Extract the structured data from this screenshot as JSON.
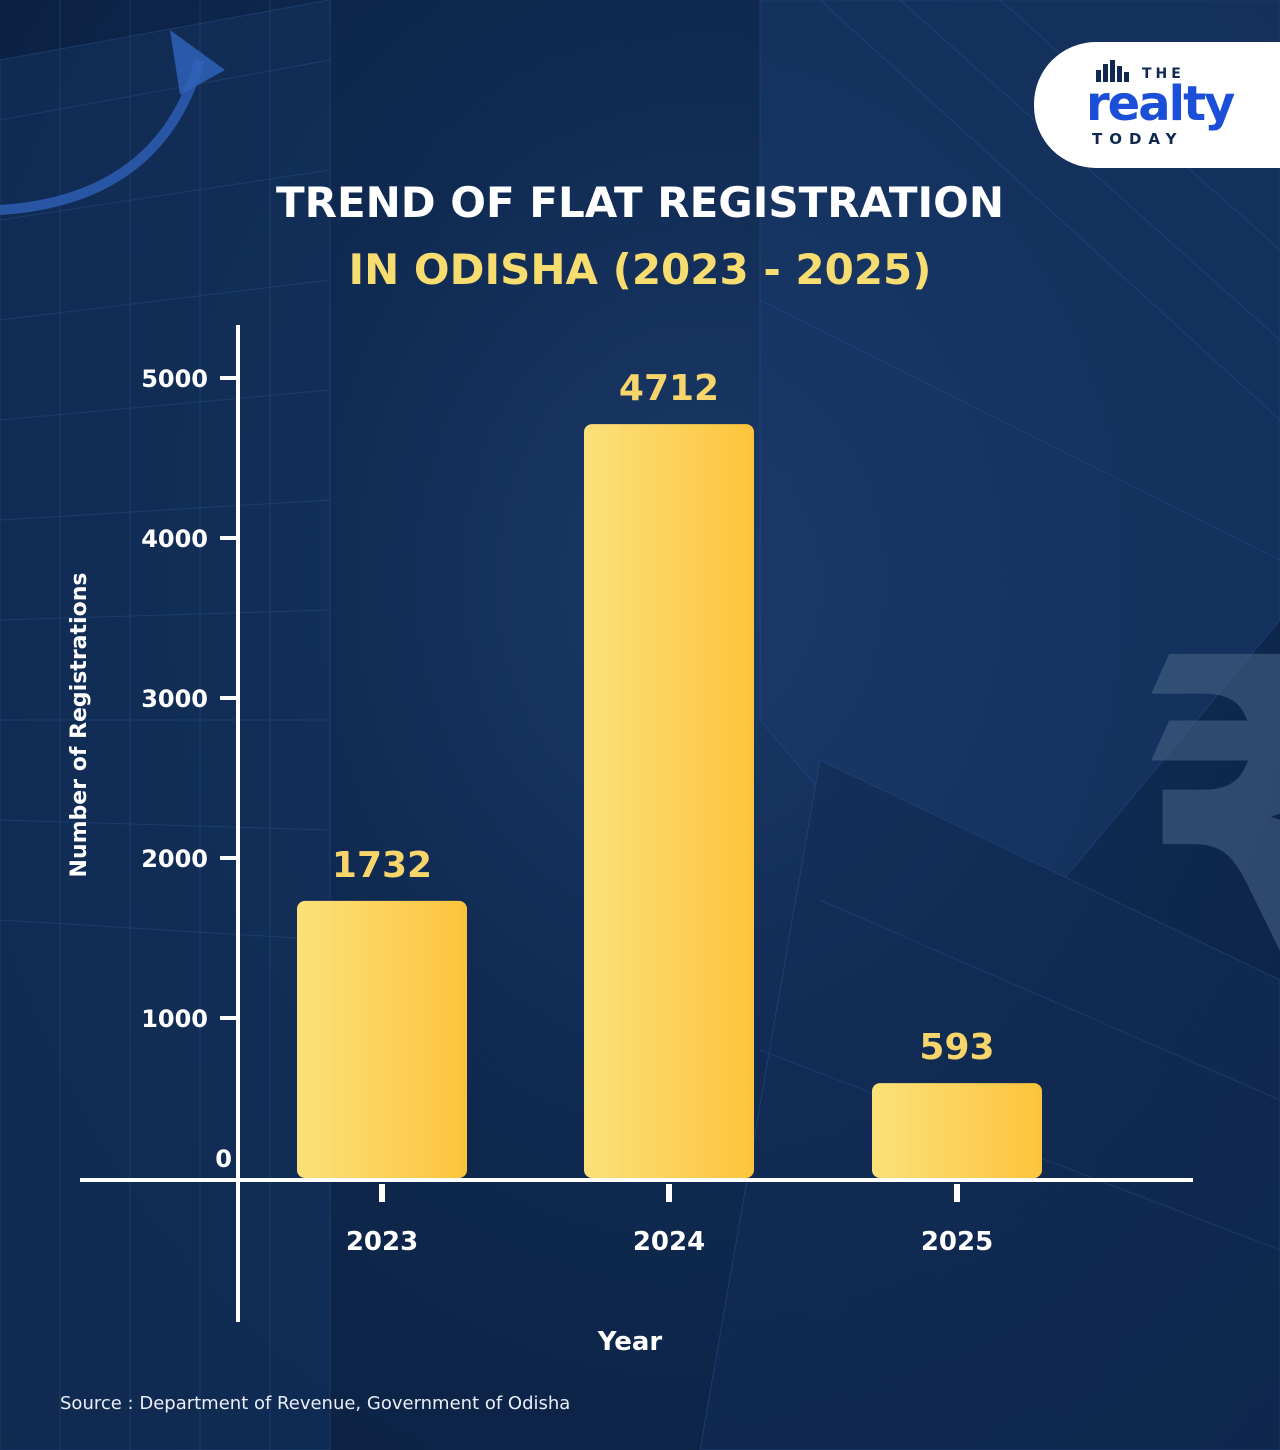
{
  "brand": {
    "top": "THE",
    "name": "realty",
    "bottom": "TODAY"
  },
  "title_line1": "TREND OF FLAT REGISTRATION",
  "title_line2": "IN ODISHA (2023 - 2025)",
  "source": "Source : Department of Revenue, Government of Odisha",
  "colors": {
    "bar_light": "#fbe17a",
    "bar_dark": "#fcc43c",
    "value_label": "#f7d56a",
    "background": "#0f2950"
  },
  "chart_data": {
    "type": "bar",
    "categories": [
      "2023",
      "2024",
      "2025"
    ],
    "values": [
      1732,
      4712,
      593
    ],
    "data_labels": [
      "1732",
      "4712",
      "593"
    ],
    "xlabel": "Year",
    "ylabel": "Number of Registrations",
    "yticks": [
      0,
      1000,
      2000,
      3000,
      4000,
      5000
    ],
    "ylim": [
      0,
      5000
    ],
    "grid": false,
    "legend": "none"
  }
}
